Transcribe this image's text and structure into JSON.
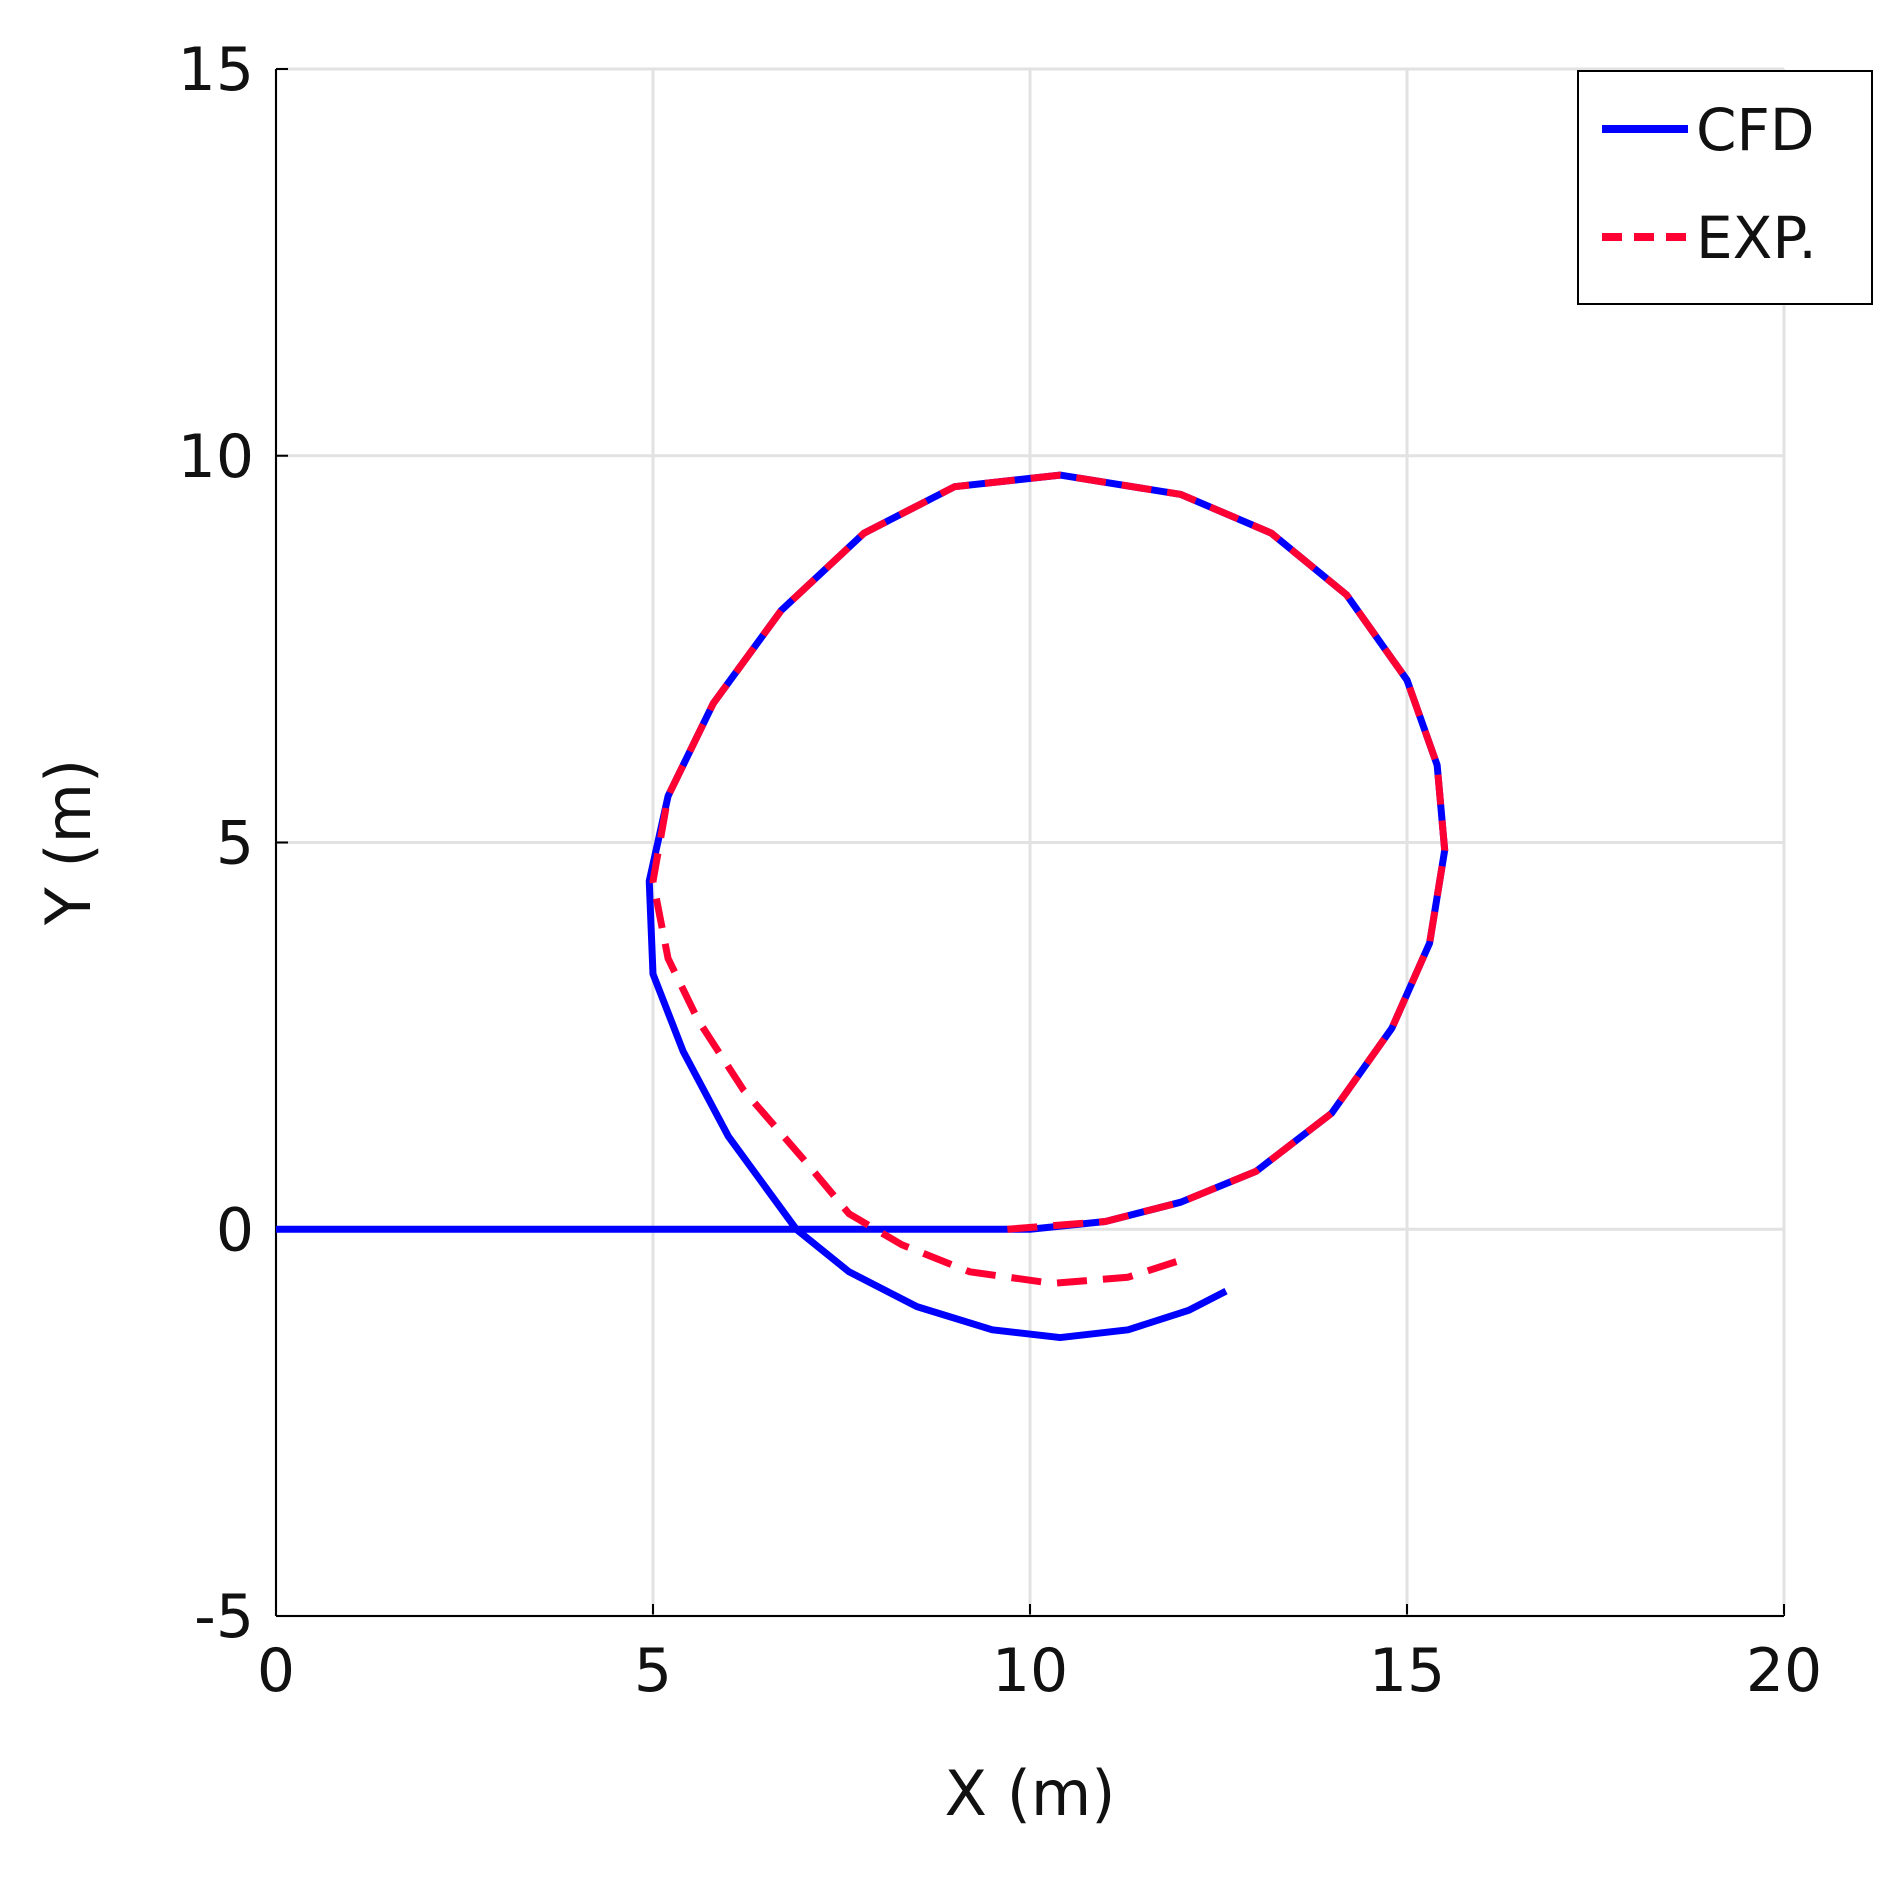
{
  "chart_data": {
    "type": "line",
    "xlabel": "X (m)",
    "ylabel": "Y (m)",
    "xlim": [
      0,
      20
    ],
    "xticks": [
      0,
      5,
      10,
      15,
      20
    ],
    "ylim": [
      -5,
      15
    ],
    "yticks": [
      -5,
      0,
      5,
      10,
      15
    ],
    "grid": true,
    "legend": "upper right",
    "series": [
      {
        "name": "CFD",
        "color": "#0000ff",
        "style": "solid",
        "x": [
          0,
          5,
          9,
          10,
          11,
          12,
          13,
          14,
          14.8,
          15.3,
          15.5,
          15.4,
          15,
          14.2,
          13.2,
          12,
          10.4,
          9,
          7.8,
          6.7,
          5.8,
          5.2,
          4.95,
          5.0,
          5.4,
          6.0,
          6.9,
          7.6,
          8.5,
          9.5,
          10.4,
          11.3,
          12.1,
          12.6
        ],
        "values": [
          0,
          0,
          0,
          0,
          0.1,
          0.35,
          0.75,
          1.5,
          2.6,
          3.7,
          4.9,
          6.0,
          7.1,
          8.2,
          9.0,
          9.5,
          9.75,
          9.6,
          9.0,
          8.0,
          6.8,
          5.6,
          4.5,
          3.3,
          2.3,
          1.2,
          0,
          -0.55,
          -1.0,
          -1.3,
          -1.4,
          -1.3,
          -1.05,
          -0.8
        ]
      },
      {
        "name": "EXP.",
        "color": "#ff0033",
        "style": "dashed",
        "x": [
          9.7,
          11,
          12,
          13,
          14,
          14.8,
          15.3,
          15.5,
          15.4,
          15,
          14.2,
          13.2,
          12,
          10.4,
          9,
          7.8,
          6.7,
          5.8,
          5.2,
          5.0,
          5.2,
          5.6,
          6.2,
          7.0,
          7.6,
          8.3,
          9.2,
          10.3,
          11.3,
          12.0
        ],
        "values": [
          0,
          0.1,
          0.35,
          0.75,
          1.5,
          2.6,
          3.7,
          4.9,
          6.0,
          7.1,
          8.2,
          9.0,
          9.5,
          9.75,
          9.6,
          9.0,
          8.0,
          6.8,
          5.6,
          4.5,
          3.5,
          2.7,
          1.8,
          0.9,
          0.2,
          -0.2,
          -0.55,
          -0.7,
          -0.62,
          -0.4
        ]
      }
    ]
  }
}
